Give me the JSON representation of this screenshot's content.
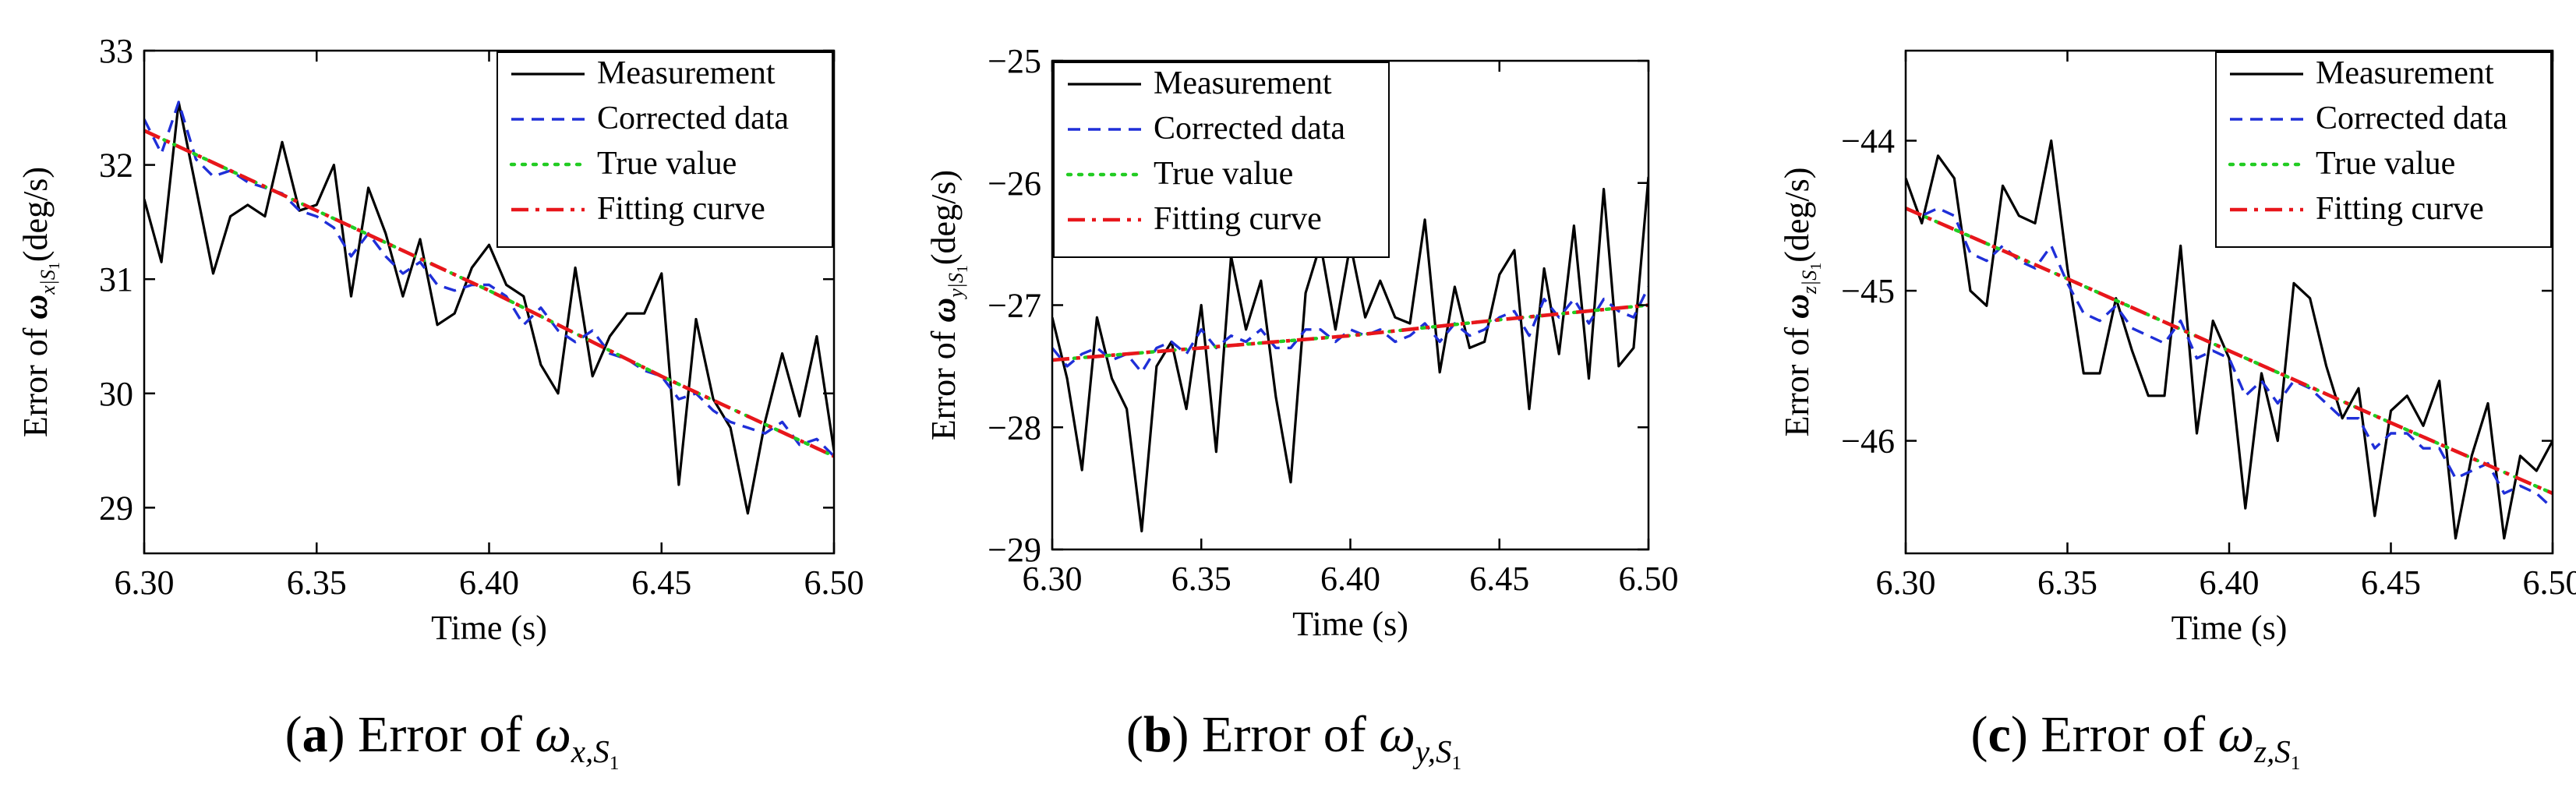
{
  "chart_data": [
    {
      "type": "line",
      "panel_label": "a",
      "caption_text": "Error of",
      "caption_math": "ω",
      "caption_sub": "x,S",
      "caption_subsub": "1",
      "xlabel": "Time (s)",
      "ylabel": "Error of ω",
      "ylabel_sub": "x|S",
      "ylabel_subsub": "1",
      "ylabel_unit": "(deg/s)",
      "xlim": [
        6.3,
        6.5
      ],
      "ylim": [
        28.6,
        33.0
      ],
      "xticks": [
        "6.30",
        "6.35",
        "6.40",
        "6.45",
        "6.50"
      ],
      "yticks": [
        "29",
        "30",
        "31",
        "32",
        "33"
      ],
      "legend": [
        "Measurement",
        "Corrected data",
        "True value",
        "Fitting curve"
      ],
      "legend_position": "top-right",
      "series": [
        {
          "name": "Measurement",
          "x": [
            6.3,
            6.305,
            6.31,
            6.315,
            6.32,
            6.325,
            6.33,
            6.335,
            6.34,
            6.345,
            6.35,
            6.355,
            6.36,
            6.365,
            6.37,
            6.375,
            6.38,
            6.385,
            6.39,
            6.395,
            6.4,
            6.405,
            6.41,
            6.415,
            6.42,
            6.425,
            6.43,
            6.435,
            6.44,
            6.445,
            6.45,
            6.455,
            6.46,
            6.465,
            6.47,
            6.475,
            6.48,
            6.485,
            6.49,
            6.495,
            6.5
          ],
          "values": [
            31.7,
            31.15,
            32.55,
            31.8,
            31.05,
            31.55,
            31.65,
            31.55,
            32.2,
            31.6,
            31.65,
            32.0,
            30.85,
            31.8,
            31.4,
            30.85,
            31.35,
            30.6,
            30.7,
            31.1,
            31.3,
            30.95,
            30.85,
            30.25,
            30.0,
            31.1,
            30.15,
            30.5,
            30.7,
            30.7,
            31.05,
            29.2,
            30.65,
            29.95,
            29.7,
            28.95,
            29.75,
            30.35,
            29.8,
            30.5,
            29.5
          ]
        },
        {
          "name": "Corrected data",
          "x": [
            6.3,
            6.305,
            6.31,
            6.315,
            6.32,
            6.325,
            6.33,
            6.335,
            6.34,
            6.345,
            6.35,
            6.355,
            6.36,
            6.365,
            6.37,
            6.375,
            6.38,
            6.385,
            6.39,
            6.395,
            6.4,
            6.405,
            6.41,
            6.415,
            6.42,
            6.425,
            6.43,
            6.435,
            6.44,
            6.445,
            6.45,
            6.455,
            6.46,
            6.465,
            6.47,
            6.475,
            6.48,
            6.485,
            6.49,
            6.495,
            6.5
          ],
          "values": [
            32.4,
            32.1,
            32.55,
            32.05,
            31.9,
            31.95,
            31.85,
            31.8,
            31.75,
            31.6,
            31.55,
            31.45,
            31.2,
            31.4,
            31.2,
            31.05,
            31.15,
            30.95,
            30.9,
            30.95,
            30.95,
            30.85,
            30.6,
            30.75,
            30.55,
            30.45,
            30.55,
            30.35,
            30.3,
            30.2,
            30.15,
            29.95,
            30.0,
            29.85,
            29.75,
            29.7,
            29.65,
            29.75,
            29.55,
            29.6,
            29.45
          ]
        },
        {
          "name": "True value",
          "x": [
            6.3,
            6.35,
            6.4,
            6.45,
            6.5
          ],
          "values": [
            32.3,
            31.6,
            30.9,
            30.15,
            29.45
          ]
        },
        {
          "name": "Fitting curve",
          "x": [
            6.3,
            6.35,
            6.4,
            6.45,
            6.5
          ],
          "values": [
            32.3,
            31.6,
            30.9,
            30.15,
            29.45
          ]
        }
      ]
    },
    {
      "type": "line",
      "panel_label": "b",
      "caption_text": "Error of",
      "caption_math": "ω",
      "caption_sub": "y,S",
      "caption_subsub": "1",
      "xlabel": "Time (s)",
      "ylabel": "Error of ω",
      "ylabel_sub": "y|S",
      "ylabel_subsub": "1",
      "ylabel_unit": "(deg/s)",
      "xlim": [
        6.3,
        6.5
      ],
      "ylim": [
        -29.0,
        -25.0
      ],
      "xticks": [
        "6.30",
        "6.35",
        "6.40",
        "6.45",
        "6.50"
      ],
      "yticks": [
        "−29",
        "−28",
        "−27",
        "−26",
        "−25"
      ],
      "legend": [
        "Measurement",
        "Corrected data",
        "True value",
        "Fitting curve"
      ],
      "legend_position": "top-left",
      "series": [
        {
          "name": "Measurement",
          "x": [
            6.3,
            6.305,
            6.31,
            6.315,
            6.32,
            6.325,
            6.33,
            6.335,
            6.34,
            6.345,
            6.35,
            6.355,
            6.36,
            6.365,
            6.37,
            6.375,
            6.38,
            6.385,
            6.39,
            6.395,
            6.4,
            6.405,
            6.41,
            6.415,
            6.42,
            6.425,
            6.43,
            6.435,
            6.44,
            6.445,
            6.45,
            6.455,
            6.46,
            6.465,
            6.47,
            6.475,
            6.48,
            6.485,
            6.49,
            6.495,
            6.5
          ],
          "values": [
            -27.1,
            -27.6,
            -28.35,
            -27.1,
            -27.6,
            -27.85,
            -28.85,
            -27.5,
            -27.3,
            -27.85,
            -27.0,
            -28.2,
            -26.6,
            -27.2,
            -26.8,
            -27.75,
            -28.45,
            -26.9,
            -26.5,
            -27.2,
            -26.5,
            -27.1,
            -26.8,
            -27.1,
            -27.15,
            -26.3,
            -27.55,
            -26.85,
            -27.35,
            -27.3,
            -26.75,
            -26.55,
            -27.85,
            -26.7,
            -27.4,
            -26.35,
            -27.6,
            -26.05,
            -27.5,
            -27.35,
            -25.95
          ]
        },
        {
          "name": "Corrected data",
          "x": [
            6.3,
            6.305,
            6.31,
            6.315,
            6.32,
            6.325,
            6.33,
            6.335,
            6.34,
            6.345,
            6.35,
            6.355,
            6.36,
            6.365,
            6.37,
            6.375,
            6.38,
            6.385,
            6.39,
            6.395,
            6.4,
            6.405,
            6.41,
            6.415,
            6.42,
            6.425,
            6.43,
            6.435,
            6.44,
            6.445,
            6.45,
            6.455,
            6.46,
            6.465,
            6.47,
            6.475,
            6.48,
            6.485,
            6.49,
            6.495,
            6.5
          ],
          "values": [
            -27.35,
            -27.5,
            -27.4,
            -27.35,
            -27.45,
            -27.4,
            -27.55,
            -27.35,
            -27.3,
            -27.4,
            -27.2,
            -27.35,
            -27.25,
            -27.3,
            -27.2,
            -27.35,
            -27.35,
            -27.2,
            -27.2,
            -27.3,
            -27.2,
            -27.25,
            -27.2,
            -27.3,
            -27.25,
            -27.15,
            -27.3,
            -27.15,
            -27.25,
            -27.2,
            -27.1,
            -27.05,
            -27.25,
            -26.95,
            -27.1,
            -26.95,
            -27.15,
            -26.95,
            -27.05,
            -27.1,
            -26.85
          ]
        },
        {
          "name": "True value",
          "x": [
            6.3,
            6.35,
            6.4,
            6.45,
            6.5
          ],
          "values": [
            -27.45,
            -27.35,
            -27.25,
            -27.12,
            -27.0
          ]
        },
        {
          "name": "Fitting curve",
          "x": [
            6.3,
            6.35,
            6.4,
            6.45,
            6.5
          ],
          "values": [
            -27.45,
            -27.35,
            -27.25,
            -27.12,
            -27.0
          ]
        }
      ]
    },
    {
      "type": "line",
      "panel_label": "c",
      "caption_text": "Error of",
      "caption_math": "ω",
      "caption_sub": "z,S",
      "caption_subsub": "1",
      "xlabel": "Time (s)",
      "ylabel": "Error of ω",
      "ylabel_sub": "z|S",
      "ylabel_subsub": "1",
      "ylabel_unit": "(deg/s)",
      "xlim": [
        6.3,
        6.5
      ],
      "ylim": [
        -46.75,
        -43.4
      ],
      "xticks": [
        "6.30",
        "6.35",
        "6.40",
        "6.45",
        "6.50"
      ],
      "yticks": [
        "−46",
        "−45",
        "−44"
      ],
      "legend": [
        "Measurement",
        "Corrected data",
        "True value",
        "Fitting curve"
      ],
      "legend_position": "top-right",
      "series": [
        {
          "name": "Measurement",
          "x": [
            6.3,
            6.305,
            6.31,
            6.315,
            6.32,
            6.325,
            6.33,
            6.335,
            6.34,
            6.345,
            6.35,
            6.355,
            6.36,
            6.365,
            6.37,
            6.375,
            6.38,
            6.385,
            6.39,
            6.395,
            6.4,
            6.405,
            6.41,
            6.415,
            6.42,
            6.425,
            6.43,
            6.435,
            6.44,
            6.445,
            6.45,
            6.455,
            6.46,
            6.465,
            6.47,
            6.475,
            6.48,
            6.485,
            6.49,
            6.495,
            6.5
          ],
          "values": [
            -44.25,
            -44.55,
            -44.1,
            -44.25,
            -45.0,
            -45.1,
            -44.3,
            -44.5,
            -44.55,
            -44.0,
            -44.85,
            -45.55,
            -45.55,
            -45.05,
            -45.4,
            -45.7,
            -45.7,
            -44.7,
            -45.95,
            -45.2,
            -45.45,
            -46.45,
            -45.55,
            -46.0,
            -44.95,
            -45.05,
            -45.5,
            -45.85,
            -45.65,
            -46.5,
            -45.8,
            -45.7,
            -45.9,
            -45.6,
            -46.65,
            -46.1,
            -45.75,
            -46.65,
            -46.1,
            -46.2,
            -46.0
          ]
        },
        {
          "name": "Corrected data",
          "x": [
            6.3,
            6.305,
            6.31,
            6.315,
            6.32,
            6.325,
            6.33,
            6.335,
            6.34,
            6.345,
            6.35,
            6.355,
            6.36,
            6.365,
            6.37,
            6.375,
            6.38,
            6.385,
            6.39,
            6.395,
            6.4,
            6.405,
            6.41,
            6.415,
            6.42,
            6.425,
            6.43,
            6.435,
            6.44,
            6.445,
            6.45,
            6.455,
            6.46,
            6.465,
            6.47,
            6.475,
            6.48,
            6.485,
            6.49,
            6.495,
            6.5
          ],
          "values": [
            -44.45,
            -44.5,
            -44.45,
            -44.5,
            -44.75,
            -44.8,
            -44.7,
            -44.8,
            -44.85,
            -44.7,
            -44.95,
            -45.15,
            -45.2,
            -45.1,
            -45.25,
            -45.3,
            -45.35,
            -45.2,
            -45.45,
            -45.4,
            -45.45,
            -45.7,
            -45.6,
            -45.75,
            -45.6,
            -45.65,
            -45.75,
            -45.85,
            -45.85,
            -46.05,
            -45.95,
            -45.95,
            -46.05,
            -46.05,
            -46.25,
            -46.2,
            -46.15,
            -46.35,
            -46.3,
            -46.35,
            -46.45
          ]
        },
        {
          "name": "True value",
          "x": [
            6.3,
            6.35,
            6.4,
            6.45,
            6.5
          ],
          "values": [
            -44.45,
            -44.92,
            -45.4,
            -45.88,
            -46.35
          ]
        },
        {
          "name": "Fitting curve",
          "x": [
            6.3,
            6.35,
            6.4,
            6.45,
            6.5
          ],
          "values": [
            -44.45,
            -44.92,
            -45.4,
            -45.88,
            -46.35
          ]
        }
      ]
    }
  ]
}
